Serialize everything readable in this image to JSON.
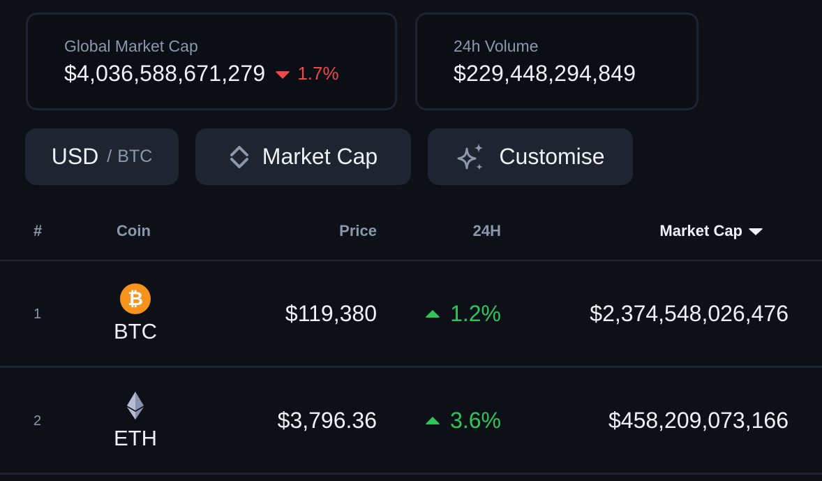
{
  "stats": {
    "market_cap": {
      "label": "Global Market Cap",
      "value": "$4,036,588,671,279",
      "change": "1.7%",
      "direction": "down",
      "color": "#f04848"
    },
    "volume": {
      "label": "24h Volume",
      "value": "$229,448,294,849"
    }
  },
  "toolbar": {
    "currency": {
      "primary": "USD",
      "separator": "/",
      "secondary": "BTC"
    },
    "sort": {
      "label": "Market Cap",
      "icon": "sort-arrows-icon"
    },
    "customise": {
      "label": "Customise",
      "icon": "sparkle-icon"
    }
  },
  "table": {
    "headers": {
      "rank": "#",
      "coin": "Coin",
      "price": "Price",
      "change": "24H",
      "market_cap": "Market Cap"
    },
    "sort_indicator": "chevron-down-icon",
    "rows": [
      {
        "rank": "1",
        "symbol": "BTC",
        "icon": "bitcoin-icon",
        "icon_color": "#f7931a",
        "price": "$119,380",
        "change": "1.2%",
        "direction": "up",
        "market_cap": "$2,374,548,026,476"
      },
      {
        "rank": "2",
        "symbol": "ETH",
        "icon": "ethereum-icon",
        "icon_color": "#8a92b2",
        "price": "$3,796.36",
        "change": "3.6%",
        "direction": "up",
        "market_cap": "$458,209,073,166"
      }
    ]
  },
  "colors": {
    "background": "#0d1117",
    "positive": "#2fc45a",
    "negative": "#f04848",
    "muted": "#8b98ab"
  }
}
